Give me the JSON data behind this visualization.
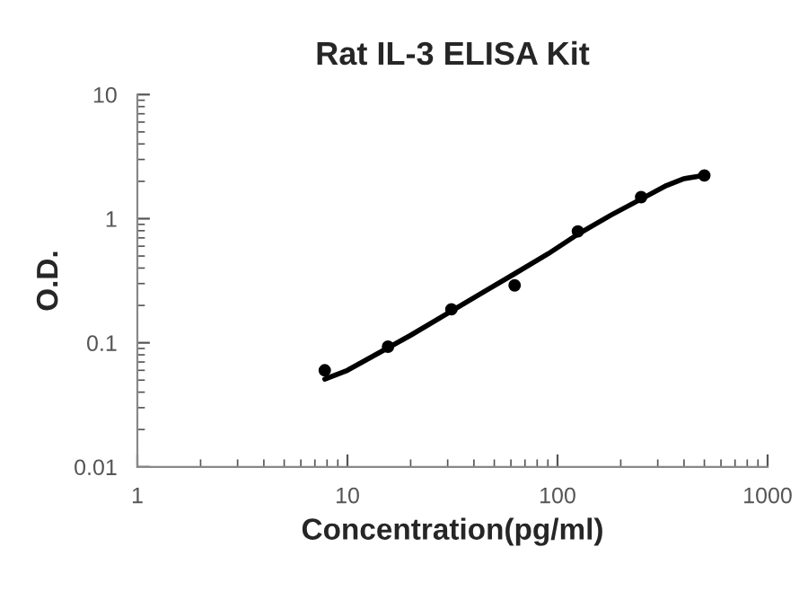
{
  "chart_data": {
    "type": "scatter",
    "title": "Rat IL-3 ELISA Kit",
    "xlabel": "Concentration(pg/ml)",
    "ylabel": "O.D.",
    "log": "xy",
    "xlim": [
      1,
      1000
    ],
    "xticks": [
      1,
      10,
      100,
      1000
    ],
    "ylim": [
      0.01,
      10
    ],
    "yticks": [
      10,
      1,
      0.1,
      0.01
    ],
    "grid": false,
    "legend": false,
    "series": [
      {
        "color": "#000000",
        "marker": "circle",
        "x": [
          7.8,
          15.6,
          31.25,
          62.5,
          125,
          250,
          500
        ],
        "values": [
          0.06,
          0.093,
          0.186,
          0.29,
          0.79,
          1.49,
          2.23
        ]
      },
      {
        "type": "line",
        "color": "#000000",
        "line_style": "solid",
        "x": [
          7.8,
          10,
          15.6,
          20,
          31.25,
          45,
          62.5,
          90,
          125,
          180,
          250,
          330,
          400,
          500
        ],
        "values": [
          0.051,
          0.06,
          0.091,
          0.115,
          0.18,
          0.26,
          0.36,
          0.52,
          0.75,
          1.07,
          1.44,
          1.85,
          2.1,
          2.23
        ]
      }
    ]
  }
}
